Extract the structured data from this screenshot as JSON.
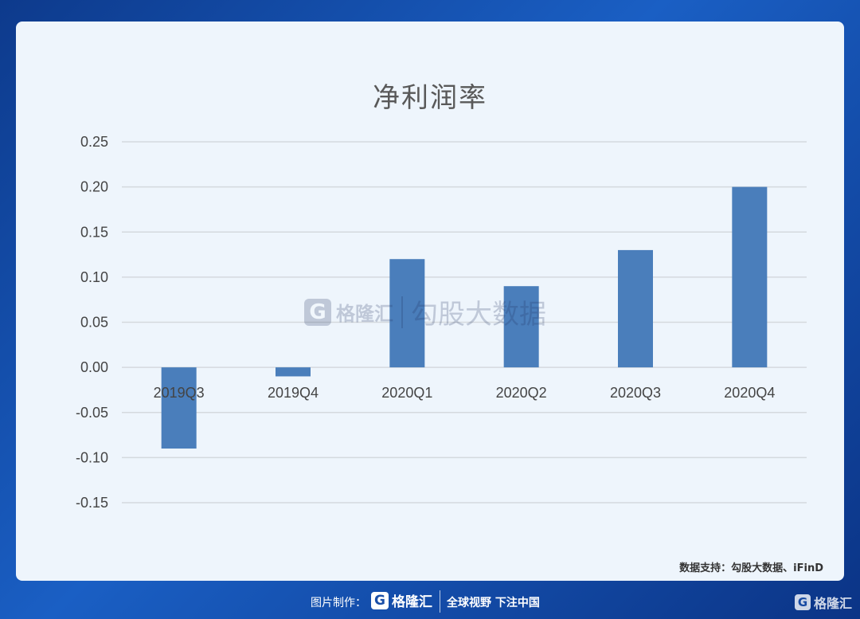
{
  "chart_data": {
    "type": "bar",
    "title": "净利润率",
    "categories": [
      "2019Q3",
      "2019Q4",
      "2020Q1",
      "2020Q2",
      "2020Q3",
      "2020Q4"
    ],
    "values": [
      -0.09,
      -0.01,
      0.12,
      0.09,
      0.13,
      0.2
    ],
    "ylim": [
      -0.15,
      0.25
    ],
    "yticks": [
      "0.25",
      "0.20",
      "0.15",
      "0.10",
      "0.05",
      "0.00",
      "-0.05",
      "-0.10",
      "-0.15"
    ],
    "grid": true,
    "bar_color": "#4a7ebb"
  },
  "watermark": {
    "logo_letter": "G",
    "brand": "格隆汇",
    "text": "勾股大数据"
  },
  "source": "数据支持：勾股大数据、iFinD",
  "footer": {
    "credit": "图片制作：",
    "logo_letter": "G",
    "brand": "格隆汇",
    "slogan": "全球视野 下注中国",
    "corner_brand": "格隆汇"
  }
}
